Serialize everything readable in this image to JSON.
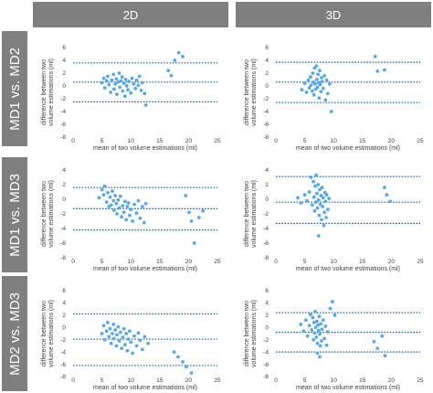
{
  "columns": [
    "2D",
    "3D"
  ],
  "rows": [
    "MD1 vs. MD2",
    "MD1 vs. MD3",
    "MD2 vs. MD3"
  ],
  "point_color": "#5aa9e6",
  "line_color": "#1f5fa8",
  "chart_data": [
    {
      "type": "scatter",
      "row": "MD1 vs. MD2",
      "column": "2D",
      "xlabel": "mean of two volume estimations (ml)",
      "ylabel": "difference between two volume estimations (ml)",
      "xlim": [
        0,
        25
      ],
      "ylim": [
        -8,
        6
      ],
      "xticks": [
        0,
        5,
        10,
        15,
        20,
        25
      ],
      "yticks": [
        -8,
        -6,
        -4,
        -2,
        0,
        2,
        4,
        6
      ],
      "hlines": [
        3.6,
        0.6,
        -2.5
      ],
      "points": [
        [
          5.0,
          0.5
        ],
        [
          5.3,
          1.2
        ],
        [
          5.5,
          -0.3
        ],
        [
          5.8,
          0.8
        ],
        [
          6.0,
          1.5
        ],
        [
          6.2,
          0.2
        ],
        [
          6.5,
          -1.0
        ],
        [
          6.7,
          0.9
        ],
        [
          7.0,
          1.8
        ],
        [
          7.1,
          -0.5
        ],
        [
          7.3,
          0.3
        ],
        [
          7.5,
          1.1
        ],
        [
          7.6,
          -1.3
        ],
        [
          7.8,
          0.6
        ],
        [
          8.0,
          2.0
        ],
        [
          8.1,
          -0.2
        ],
        [
          8.3,
          0.8
        ],
        [
          8.5,
          1.4
        ],
        [
          8.6,
          -0.8
        ],
        [
          8.8,
          0.4
        ],
        [
          9.0,
          -1.6
        ],
        [
          9.1,
          1.0
        ],
        [
          9.3,
          0.0
        ],
        [
          9.5,
          -0.6
        ],
        [
          9.7,
          0.7
        ],
        [
          10.0,
          -1.1
        ],
        [
          10.2,
          1.2
        ],
        [
          10.5,
          0.3
        ],
        [
          10.8,
          -0.4
        ],
        [
          11.0,
          0.9
        ],
        [
          11.3,
          0.1
        ],
        [
          11.5,
          1.5
        ],
        [
          11.8,
          -0.7
        ],
        [
          12.0,
          0.5
        ],
        [
          12.4,
          -1.2
        ],
        [
          12.6,
          -3.0
        ],
        [
          16.5,
          2.4
        ],
        [
          17.0,
          1.6
        ],
        [
          17.6,
          4.0
        ],
        [
          18.3,
          5.2
        ],
        [
          19.0,
          4.6
        ]
      ]
    },
    {
      "type": "scatter",
      "row": "MD1 vs. MD2",
      "column": "3D",
      "xlabel": "mean of two volume estimations (ml)",
      "ylabel": "difference between two volume estimations (ml)",
      "xlim": [
        0,
        25
      ],
      "ylim": [
        -8,
        6
      ],
      "xticks": [
        0,
        5,
        10,
        15,
        20,
        25
      ],
      "yticks": [
        -8,
        -6,
        -4,
        -2,
        0,
        2,
        4,
        6
      ],
      "hlines": [
        3.7,
        0.6,
        -2.6
      ],
      "points": [
        [
          4.5,
          -0.6
        ],
        [
          5.0,
          0.4
        ],
        [
          5.3,
          -1.0
        ],
        [
          5.6,
          0.9
        ],
        [
          5.8,
          -0.3
        ],
        [
          6.0,
          1.4
        ],
        [
          6.1,
          0.1
        ],
        [
          6.3,
          -0.8
        ],
        [
          6.4,
          2.0
        ],
        [
          6.5,
          0.6
        ],
        [
          6.6,
          -1.4
        ],
        [
          6.7,
          2.8
        ],
        [
          6.8,
          0.3
        ],
        [
          6.9,
          -0.5
        ],
        [
          7.0,
          3.1
        ],
        [
          7.1,
          1.0
        ],
        [
          7.2,
          -0.2
        ],
        [
          7.3,
          1.8
        ],
        [
          7.4,
          0.5
        ],
        [
          7.5,
          -1.9
        ],
        [
          7.6,
          2.4
        ],
        [
          7.7,
          0.2
        ],
        [
          7.8,
          -0.9
        ],
        [
          7.9,
          1.3
        ],
        [
          8.0,
          0.7
        ],
        [
          8.2,
          -0.4
        ],
        [
          8.4,
          1.6
        ],
        [
          8.6,
          -2.2
        ],
        [
          8.8,
          0.9
        ],
        [
          9.0,
          -1.2
        ],
        [
          9.3,
          0.3
        ],
        [
          9.6,
          -4.0
        ],
        [
          17.2,
          4.6
        ],
        [
          17.6,
          2.3
        ],
        [
          18.8,
          2.5
        ]
      ]
    },
    {
      "type": "scatter",
      "row": "MD1 vs. MD3",
      "column": "2D",
      "xlabel": "mean of two volume estimations (ml)",
      "ylabel": "difference between two volume estimations (ml)",
      "xlim": [
        0,
        25
      ],
      "ylim": [
        -8,
        4
      ],
      "xticks": [
        0,
        5,
        10,
        15,
        20,
        25
      ],
      "yticks": [
        -8,
        -6,
        -4,
        -2,
        0,
        2,
        4
      ],
      "hlines": [
        1.6,
        -1.3,
        -4.2
      ],
      "points": [
        [
          4.5,
          0.2
        ],
        [
          5.0,
          1.3
        ],
        [
          5.3,
          0.6
        ],
        [
          5.5,
          1.8
        ],
        [
          5.8,
          -0.4
        ],
        [
          6.0,
          0.9
        ],
        [
          6.2,
          -1.0
        ],
        [
          6.4,
          0.3
        ],
        [
          6.6,
          -0.8
        ],
        [
          6.8,
          1.1
        ],
        [
          7.0,
          -0.2
        ],
        [
          7.1,
          -1.5
        ],
        [
          7.3,
          0.5
        ],
        [
          7.5,
          -0.6
        ],
        [
          7.6,
          -2.0
        ],
        [
          7.8,
          -0.1
        ],
        [
          8.0,
          -1.2
        ],
        [
          8.2,
          0.4
        ],
        [
          8.4,
          -2.4
        ],
        [
          8.6,
          -0.9
        ],
        [
          8.8,
          -1.8
        ],
        [
          9.0,
          -0.3
        ],
        [
          9.2,
          -2.8
        ],
        [
          9.4,
          -1.0
        ],
        [
          9.6,
          -0.5
        ],
        [
          9.8,
          -2.2
        ],
        [
          10.0,
          -1.4
        ],
        [
          10.3,
          -3.0
        ],
        [
          10.6,
          -0.7
        ],
        [
          11.0,
          -1.9
        ],
        [
          11.3,
          -0.2
        ],
        [
          11.6,
          -2.6
        ],
        [
          12.0,
          -1.0
        ],
        [
          12.3,
          -3.2
        ],
        [
          12.6,
          -0.6
        ],
        [
          19.5,
          0.5
        ],
        [
          20.1,
          -1.8
        ],
        [
          20.5,
          -3.0
        ],
        [
          21.0,
          -6.0
        ],
        [
          21.8,
          -2.5
        ],
        [
          22.5,
          -1.6
        ]
      ]
    },
    {
      "type": "scatter",
      "row": "MD1 vs. MD3",
      "column": "3D",
      "xlabel": "mean of two volume estimations (ml)",
      "ylabel": "difference between two volume estimations (ml)",
      "xlim": [
        0,
        25
      ],
      "ylim": [
        -8,
        4
      ],
      "xticks": [
        0,
        5,
        10,
        15,
        20,
        25
      ],
      "yticks": [
        -8,
        -6,
        -4,
        -2,
        0,
        2,
        4
      ],
      "hlines": [
        3.1,
        -0.4,
        -3.3
      ],
      "points": [
        [
          3.8,
          0.2
        ],
        [
          4.3,
          -0.5
        ],
        [
          5.0,
          0.6
        ],
        [
          5.4,
          -0.2
        ],
        [
          5.8,
          1.0
        ],
        [
          6.1,
          3.0
        ],
        [
          6.3,
          -0.8
        ],
        [
          6.5,
          2.4
        ],
        [
          6.6,
          0.3
        ],
        [
          6.7,
          -1.6
        ],
        [
          6.8,
          1.8
        ],
        [
          6.9,
          -0.4
        ],
        [
          7.0,
          3.3
        ],
        [
          7.1,
          0.8
        ],
        [
          7.2,
          -1.2
        ],
        [
          7.3,
          2.0
        ],
        [
          7.4,
          -0.1
        ],
        [
          7.5,
          -2.2
        ],
        [
          7.6,
          1.3
        ],
        [
          7.7,
          -0.7
        ],
        [
          7.8,
          0.5
        ],
        [
          7.9,
          -2.8
        ],
        [
          8.0,
          1.6
        ],
        [
          8.1,
          -1.0
        ],
        [
          8.2,
          0.2
        ],
        [
          8.3,
          -3.6
        ],
        [
          8.4,
          -1.8
        ],
        [
          8.5,
          0.9
        ],
        [
          8.6,
          -0.3
        ],
        [
          8.7,
          -2.5
        ],
        [
          8.8,
          0.6
        ],
        [
          9.0,
          -1.4
        ],
        [
          9.2,
          0.1
        ],
        [
          7.4,
          -5.0
        ],
        [
          18.8,
          1.6
        ],
        [
          19.2,
          0.6
        ],
        [
          19.8,
          -0.3
        ]
      ]
    },
    {
      "type": "scatter",
      "row": "MD2 vs. MD3",
      "column": "2D",
      "xlabel": "mean of two volume estimations (ml)",
      "ylabel": "difference between two volume estimations (ml)",
      "xlim": [
        0,
        25
      ],
      "ylim": [
        -8,
        6
      ],
      "xticks": [
        0,
        5,
        10,
        15,
        20,
        25
      ],
      "yticks": [
        -8,
        -6,
        -4,
        -2,
        0,
        2,
        4,
        6
      ],
      "hlines": [
        2.2,
        -1.9,
        -6.2
      ],
      "points": [
        [
          5.0,
          -1.0
        ],
        [
          5.3,
          0.3
        ],
        [
          5.5,
          -2.0
        ],
        [
          5.8,
          -0.6
        ],
        [
          6.0,
          0.8
        ],
        [
          6.2,
          -1.5
        ],
        [
          6.4,
          -0.2
        ],
        [
          6.6,
          -2.6
        ],
        [
          6.8,
          -1.0
        ],
        [
          7.0,
          0.5
        ],
        [
          7.1,
          -1.8
        ],
        [
          7.3,
          -0.4
        ],
        [
          7.5,
          -3.0
        ],
        [
          7.6,
          -1.2
        ],
        [
          7.8,
          0.1
        ],
        [
          8.0,
          -2.2
        ],
        [
          8.2,
          -0.8
        ],
        [
          8.4,
          -3.4
        ],
        [
          8.6,
          -1.6
        ],
        [
          8.8,
          -0.2
        ],
        [
          9.0,
          -2.8
        ],
        [
          9.2,
          -1.0
        ],
        [
          9.4,
          -3.8
        ],
        [
          9.6,
          -1.9
        ],
        [
          9.8,
          -0.6
        ],
        [
          10.0,
          -2.4
        ],
        [
          10.3,
          -4.2
        ],
        [
          10.6,
          -1.4
        ],
        [
          11.0,
          -3.0
        ],
        [
          11.3,
          -0.9
        ],
        [
          11.6,
          -2.1
        ],
        [
          12.0,
          -3.6
        ],
        [
          12.4,
          -1.5
        ],
        [
          13.0,
          -2.6
        ],
        [
          17.5,
          -4.0
        ],
        [
          18.2,
          -4.8
        ],
        [
          19.0,
          -5.6
        ],
        [
          19.6,
          -6.4
        ],
        [
          20.5,
          -7.4
        ]
      ]
    },
    {
      "type": "scatter",
      "row": "MD2 vs. MD3",
      "column": "3D",
      "xlabel": "mean of two volume estimations (ml)",
      "ylabel": "difference between two volume estimations (ml)",
      "xlim": [
        0,
        25
      ],
      "ylim": [
        -8,
        6
      ],
      "xticks": [
        0,
        5,
        10,
        15,
        20,
        25
      ],
      "yticks": [
        -8,
        -6,
        -4,
        -2,
        0,
        2,
        4,
        6
      ],
      "hlines": [
        2.4,
        -0.8,
        -4.0
      ],
      "points": [
        [
          4.3,
          0.5
        ],
        [
          4.8,
          -0.6
        ],
        [
          5.2,
          1.2
        ],
        [
          5.5,
          -1.4
        ],
        [
          5.8,
          0.3
        ],
        [
          6.0,
          2.1
        ],
        [
          6.2,
          -0.4
        ],
        [
          6.4,
          1.6
        ],
        [
          6.5,
          -2.0
        ],
        [
          6.6,
          0.8
        ],
        [
          6.7,
          -0.9
        ],
        [
          6.8,
          2.6
        ],
        [
          6.9,
          0.0
        ],
        [
          7.0,
          -1.6
        ],
        [
          7.1,
          1.0
        ],
        [
          7.2,
          -2.6
        ],
        [
          7.3,
          0.4
        ],
        [
          7.4,
          -0.5
        ],
        [
          7.5,
          1.8
        ],
        [
          7.6,
          -1.1
        ],
        [
          7.7,
          -3.0
        ],
        [
          7.8,
          0.6
        ],
        [
          7.9,
          -2.2
        ],
        [
          8.0,
          -0.3
        ],
        [
          8.2,
          1.2
        ],
        [
          8.4,
          -1.8
        ],
        [
          8.6,
          0.2
        ],
        [
          8.8,
          -2.9
        ],
        [
          9.0,
          -0.7
        ],
        [
          9.4,
          3.1
        ],
        [
          9.8,
          4.2
        ],
        [
          10.2,
          2.0
        ],
        [
          7.2,
          -4.2
        ],
        [
          7.6,
          -4.8
        ],
        [
          17.0,
          -2.3
        ],
        [
          17.6,
          -3.4
        ],
        [
          18.4,
          -1.4
        ],
        [
          18.9,
          -4.6
        ]
      ]
    }
  ]
}
